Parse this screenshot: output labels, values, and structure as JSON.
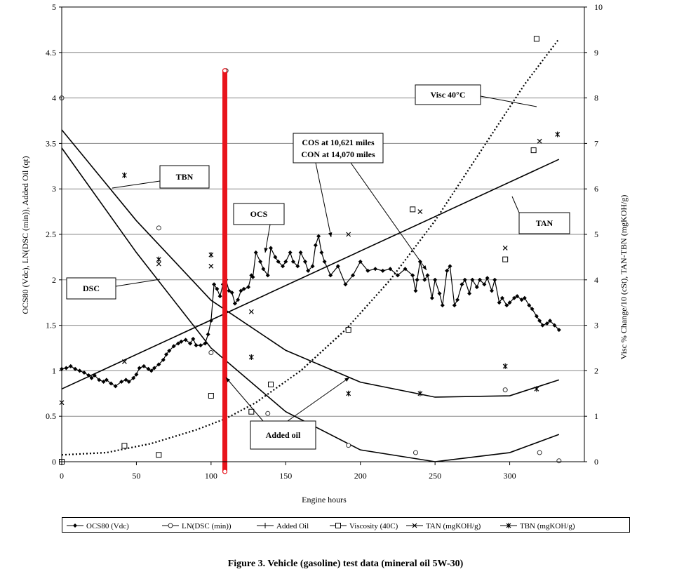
{
  "caption": "Figure 3. Vehicle (gasoline) test data (mineral oil 5W-30)",
  "chart_data": {
    "type": "line",
    "xlabel": "Engine hours",
    "ylabel_left": "OCS80 (Vdc), LN(DSC (min)), Added Oil (qt)",
    "ylabel_right": "Visc % Change/10 (cSt), TAN-TBN (mgKOH/g)",
    "xlim": [
      0,
      350
    ],
    "xticks": [
      "0",
      "50",
      "100",
      "150",
      "200",
      "250",
      "300"
    ],
    "ylim_left": [
      0,
      5
    ],
    "yticks_left": [
      "0",
      "0.5",
      "1",
      "1.5",
      "2",
      "2.5",
      "3",
      "3.5",
      "4",
      "4.5",
      "5"
    ],
    "ylim_right": [
      0,
      10
    ],
    "yticks_right": [
      "0",
      "1",
      "2",
      "3",
      "4",
      "5",
      "6",
      "7",
      "8",
      "9",
      "10"
    ],
    "grid": "horizontal",
    "legend_placement": "bottom",
    "series": [
      {
        "name": "OCS80 (Vdc)",
        "axis": "left",
        "style": "line-diamond",
        "x": [
          0,
          3,
          6,
          9,
          12,
          15,
          18,
          20,
          22,
          25,
          28,
          30,
          33,
          36,
          40,
          43,
          45,
          48,
          50,
          52,
          55,
          58,
          60,
          62,
          65,
          68,
          70,
          72,
          75,
          78,
          80,
          83,
          86,
          88,
          90,
          93,
          96,
          98,
          100,
          102,
          104,
          106,
          108,
          110,
          112,
          114,
          116,
          118,
          120,
          122,
          125,
          127,
          128,
          130,
          133,
          135,
          138,
          140,
          143,
          145,
          148,
          150,
          153,
          155,
          158,
          160,
          163,
          165,
          168,
          170,
          172,
          174,
          176,
          180,
          185,
          190,
          195,
          200,
          205,
          210,
          215,
          220,
          225,
          230,
          235,
          237,
          238,
          240,
          243,
          245,
          248,
          250,
          253,
          255,
          258,
          260,
          263,
          265,
          268,
          270,
          273,
          275,
          278,
          280,
          283,
          285,
          288,
          290,
          293,
          295,
          298,
          300,
          303,
          305,
          308,
          310,
          313,
          315,
          318,
          320,
          322,
          325,
          327,
          330,
          333
        ],
        "y": [
          1.02,
          1.03,
          1.05,
          1.02,
          1.0,
          0.98,
          0.95,
          0.92,
          0.95,
          0.9,
          0.88,
          0.9,
          0.86,
          0.83,
          0.88,
          0.9,
          0.88,
          0.92,
          0.96,
          1.03,
          1.05,
          1.02,
          1.0,
          1.03,
          1.07,
          1.12,
          1.18,
          1.22,
          1.27,
          1.3,
          1.32,
          1.34,
          1.3,
          1.35,
          1.28,
          1.28,
          1.3,
          1.4,
          1.55,
          1.95,
          1.9,
          1.82,
          1.95,
          2.0,
          1.88,
          1.86,
          1.74,
          1.78,
          1.88,
          1.9,
          1.92,
          2.05,
          2.03,
          2.3,
          2.2,
          2.12,
          2.05,
          2.35,
          2.25,
          2.2,
          2.15,
          2.2,
          2.3,
          2.2,
          2.15,
          2.3,
          2.2,
          2.1,
          2.15,
          2.38,
          2.48,
          2.3,
          2.2,
          2.05,
          2.15,
          1.95,
          2.05,
          2.2,
          2.1,
          2.12,
          2.1,
          2.12,
          2.05,
          2.12,
          2.05,
          1.88,
          2.0,
          2.2,
          2.0,
          2.05,
          1.8,
          2.0,
          1.85,
          1.72,
          2.1,
          2.15,
          1.72,
          1.78,
          1.95,
          2.0,
          1.85,
          2.0,
          1.92,
          2.0,
          1.95,
          2.02,
          1.88,
          2.0,
          1.75,
          1.8,
          1.72,
          1.75,
          1.8,
          1.82,
          1.78,
          1.8,
          1.72,
          1.68,
          1.6,
          1.55,
          1.5,
          1.52,
          1.55,
          1.5,
          1.45
        ]
      },
      {
        "name": "LN(DSC (min))",
        "axis": "left",
        "style": "markers-circle",
        "x": [
          0,
          65,
          100,
          110,
          138,
          192,
          237,
          297,
          320,
          333
        ],
        "y": [
          4.0,
          2.57,
          1.2,
          4.3,
          0.53,
          0.18,
          0.1,
          0.79,
          0.1,
          0.01
        ]
      },
      {
        "name": "Added Oil",
        "axis": "left",
        "style": "bar",
        "x": [
          109
        ],
        "y": [
          4.3
        ]
      },
      {
        "name": "Viscosity (40C)",
        "axis": "right",
        "style": "markers-square",
        "x": [
          0,
          42,
          65,
          100,
          127,
          140,
          192,
          235,
          297,
          316,
          318
        ],
        "y": [
          0.0,
          0.35,
          0.15,
          1.45,
          1.1,
          1.7,
          2.9,
          5.55,
          4.45,
          6.85,
          9.3
        ]
      },
      {
        "name": "TAN (mgKOH/g)",
        "axis": "right",
        "style": "markers-x",
        "x": [
          0,
          42,
          65,
          100,
          127,
          192,
          240,
          297,
          320
        ],
        "y": [
          1.3,
          2.2,
          4.35,
          4.3,
          3.3,
          5.0,
          5.5,
          4.7,
          7.05
        ]
      },
      {
        "name": "TBN (mgKOH/g)",
        "axis": "right",
        "style": "markers-star",
        "x": [
          42,
          65,
          100,
          127,
          192,
          240,
          297,
          318,
          332
        ],
        "y": [
          6.3,
          4.45,
          4.55,
          2.3,
          1.5,
          1.5,
          2.1,
          1.6,
          7.2
        ]
      }
    ],
    "fits": [
      {
        "name": "TAN fit",
        "axis": "right",
        "style": "solid",
        "x": [
          0,
          333
        ],
        "y": [
          1.6,
          6.65
        ]
      },
      {
        "name": "TBN fit",
        "axis": "right",
        "style": "solid",
        "x": [
          0,
          50,
          100,
          150,
          200,
          250,
          300,
          333
        ],
        "y": [
          7.3,
          5.3,
          3.55,
          2.45,
          1.75,
          1.42,
          1.45,
          1.8
        ]
      },
      {
        "name": "DSC fit",
        "axis": "left",
        "style": "solid",
        "x": [
          0,
          50,
          100,
          150,
          200,
          250,
          300,
          333
        ],
        "y": [
          3.45,
          2.3,
          1.25,
          0.55,
          0.13,
          0.0,
          0.1,
          0.3
        ]
      },
      {
        "name": "Viscosity fit",
        "axis": "right",
        "style": "dotted",
        "x": [
          0,
          30,
          60,
          90,
          110,
          130,
          160,
          190,
          220,
          250,
          280,
          310,
          333
        ],
        "y": [
          0.15,
          0.2,
          0.4,
          0.7,
          0.95,
          1.3,
          2.0,
          2.9,
          4.0,
          5.3,
          6.8,
          8.3,
          9.3
        ]
      }
    ],
    "annotations": [
      {
        "text": "TBN"
      },
      {
        "text": "DSC"
      },
      {
        "text": "OCS"
      },
      {
        "text": "COS at 10,621 miles"
      },
      {
        "text": "CON at 14,070 miles"
      },
      {
        "text": "Visc 40°C"
      },
      {
        "text": "TAN"
      },
      {
        "text": "Added oil"
      }
    ]
  }
}
